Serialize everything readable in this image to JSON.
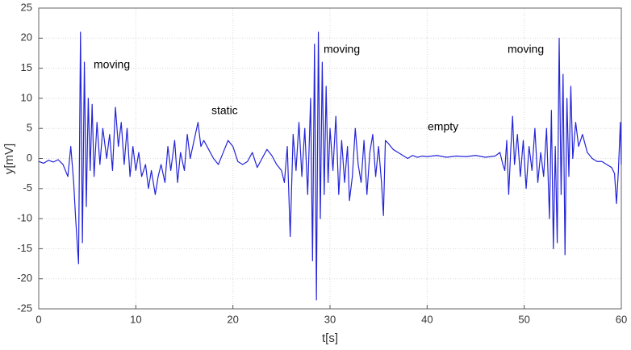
{
  "chart_data": {
    "type": "line",
    "xlabel": "t[s]",
    "ylabel": "y[mV]",
    "annotations": [
      "moving",
      "static",
      "moving",
      "empty",
      "moving"
    ],
    "xlim": [
      0,
      60
    ],
    "ylim": [
      -25,
      25
    ],
    "xticks": [
      0,
      10,
      20,
      30,
      40,
      50,
      60
    ],
    "yticks": [
      -25,
      -20,
      -15,
      -10,
      -5,
      0,
      5,
      10,
      15,
      20,
      25
    ],
    "grid": true,
    "x": [
      0,
      0.5,
      1,
      1.5,
      2,
      2.5,
      3,
      3.3,
      3.6,
      3.8,
      4.1,
      4.3,
      4.5,
      4.7,
      4.9,
      5.1,
      5.3,
      5.5,
      5.7,
      6,
      6.3,
      6.6,
      7,
      7.3,
      7.6,
      7.9,
      8.2,
      8.5,
      8.8,
      9.1,
      9.4,
      9.7,
      10,
      10.3,
      10.6,
      11,
      11.3,
      11.6,
      12,
      12.3,
      12.6,
      13,
      13.3,
      13.6,
      14,
      14.3,
      14.6,
      15,
      15.3,
      15.6,
      16,
      16.4,
      16.7,
      17,
      17.5,
      18,
      18.5,
      19,
      19.5,
      20,
      20.5,
      21,
      21.5,
      22,
      22.5,
      23,
      23.5,
      24,
      24.5,
      25,
      25.3,
      25.6,
      25.9,
      26.2,
      26.5,
      26.8,
      27.1,
      27.4,
      27.7,
      28,
      28.2,
      28.4,
      28.6,
      28.8,
      29,
      29.2,
      29.4,
      29.6,
      29.8,
      30,
      30.3,
      30.6,
      30.9,
      31.2,
      31.5,
      31.8,
      32,
      32.3,
      32.6,
      32.9,
      33.2,
      33.5,
      33.8,
      34.1,
      34.4,
      34.7,
      35,
      35.3,
      35.5,
      35.7,
      36,
      36.5,
      37,
      37.5,
      38,
      38.5,
      39,
      39.5,
      40,
      41,
      42,
      43,
      44,
      45,
      46,
      47,
      47.5,
      47.8,
      48,
      48.2,
      48.4,
      48.6,
      48.8,
      49,
      49.3,
      49.6,
      49.9,
      50.2,
      50.5,
      50.8,
      51.1,
      51.4,
      51.7,
      52,
      52.3,
      52.6,
      52.8,
      53,
      53.2,
      53.4,
      53.6,
      53.8,
      54,
      54.2,
      54.4,
      54.6,
      54.8,
      55,
      55.3,
      55.6,
      56,
      56.5,
      57,
      57.5,
      58,
      58.5,
      59,
      59.3,
      59.5,
      59.7,
      59.9,
      60
    ],
    "series": [
      {
        "color": "#2424d8",
        "values": [
          -0.5,
          -0.8,
          -0.3,
          -0.6,
          -0.2,
          -1,
          -3,
          2,
          -4,
          -10,
          -17.5,
          21,
          -14,
          16,
          -8,
          10,
          -2,
          9,
          -3,
          6,
          -1,
          5,
          0,
          4,
          -2,
          8.5,
          2,
          6,
          -1,
          5,
          -3,
          2,
          -2,
          1,
          -3,
          -1,
          -5,
          -2,
          -6,
          -3,
          -1,
          -4,
          2,
          -2,
          3,
          -4,
          1,
          -2,
          4,
          0,
          3,
          6,
          2,
          3,
          1.5,
          0,
          -1,
          1,
          3,
          2,
          -0.5,
          -1,
          -0.5,
          1,
          -1.5,
          0,
          1.5,
          0.5,
          -1,
          -2,
          -4,
          2,
          -13,
          4,
          -2,
          6,
          -3,
          5,
          -6,
          10,
          -17,
          19,
          -23.5,
          21,
          -10,
          16,
          -6,
          12,
          -4,
          5,
          -2,
          7,
          -6,
          3,
          -4,
          2,
          -7,
          -3,
          5,
          -1,
          -4,
          3,
          -6,
          1,
          4,
          -3,
          2,
          -4,
          -9.5,
          3,
          2.5,
          1.5,
          1,
          0.5,
          0,
          0.5,
          0.2,
          0.4,
          0.3,
          0.5,
          0.2,
          0.4,
          0.3,
          0.5,
          0.2,
          0.4,
          1,
          -1,
          -2,
          3,
          -6,
          1,
          7,
          -1,
          4,
          -3,
          3,
          -5,
          2,
          -2,
          5,
          -4,
          1,
          -3,
          5,
          -10,
          8,
          -15,
          2,
          -14,
          20,
          -6,
          14,
          -16,
          10,
          -3,
          12,
          0,
          6,
          2,
          4,
          1,
          0,
          -0.5,
          -0.5,
          -1,
          -1.5,
          -2.5,
          -7.5,
          -2,
          6,
          -1
        ]
      }
    ]
  }
}
